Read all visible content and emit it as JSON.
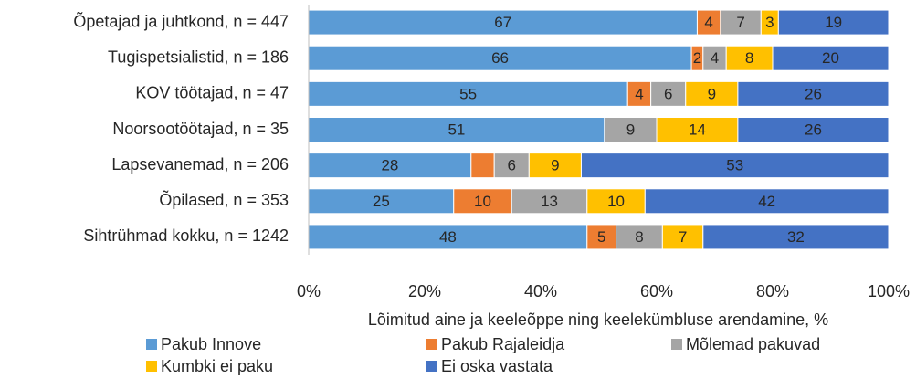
{
  "chart_data": {
    "type": "stacked_barh",
    "categories": [
      "Õpetajad ja juhtkond, n = 447",
      "Tugispetsialistid, n = 186",
      "KOV töötajad, n = 47",
      "Noorsootöötajad, n = 35",
      "Lapsevanemad, n = 206",
      "Õpilased, n = 353",
      "Sihtrühmad kokku, n = 1242"
    ],
    "series": [
      {
        "name": "Pakub Innove",
        "color": "#5B9BD5",
        "values": [
          67,
          66,
          55,
          51,
          28,
          25,
          48
        ]
      },
      {
        "name": "Pakub Rajaleidja",
        "color": "#ED7D31",
        "values": [
          4,
          2,
          4,
          0,
          4,
          10,
          5
        ],
        "value_labels": [
          "4",
          "2",
          "4",
          null,
          null,
          "10",
          "5"
        ]
      },
      {
        "name": "Mõlemad pakuvad",
        "color": "#A5A5A5",
        "values": [
          7,
          4,
          6,
          9,
          6,
          13,
          8
        ]
      },
      {
        "name": "Kumbki ei paku",
        "color": "#FFC000",
        "values": [
          3,
          8,
          9,
          14,
          9,
          10,
          7
        ]
      },
      {
        "name": "Ei oska vastata",
        "color": "#4472C4",
        "values": [
          19,
          20,
          26,
          26,
          53,
          42,
          32
        ]
      }
    ],
    "xlabel": "Lõimitud aine ja keeleõppe ning keelekümbluse arendamine, %",
    "xlim": [
      0,
      100
    ],
    "xticks": [
      {
        "value": 0,
        "label": "0%"
      },
      {
        "value": 20,
        "label": "20%"
      },
      {
        "value": 40,
        "label": "40%"
      },
      {
        "value": 60,
        "label": "60%"
      },
      {
        "value": 80,
        "label": "80%"
      },
      {
        "value": 100,
        "label": "100%"
      }
    ],
    "grid": false,
    "legend": "bottom"
  }
}
